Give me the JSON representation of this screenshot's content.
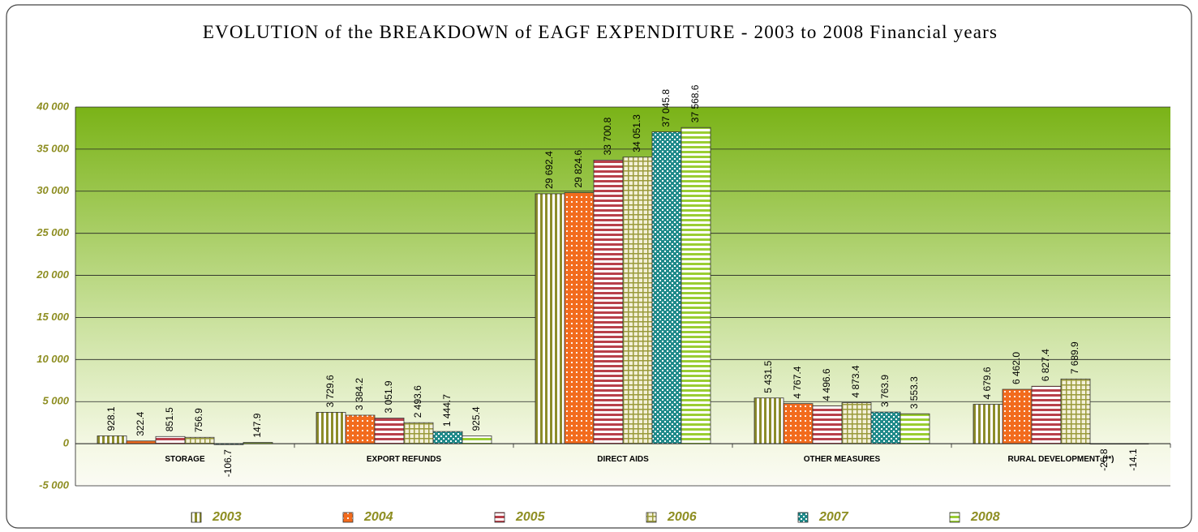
{
  "chart_data": {
    "type": "bar",
    "title": "EVOLUTION of the BREAKDOWN of EAGF EXPENDITURE - 2003 to 2008 Financial years",
    "categories": [
      "STORAGE",
      "EXPORT REFUNDS",
      "DIRECT AIDS",
      "OTHER MEASURES",
      "RURAL DEVELOPMENT (**)"
    ],
    "series": [
      {
        "name": "2003",
        "color": "#8c8c2a",
        "values": [
          928.1,
          3729.6,
          29692.4,
          5431.5,
          4679.6
        ],
        "value_labels": [
          "928.1",
          "3 729.6",
          "29 692.4",
          "5 431.5",
          "4 679.6"
        ]
      },
      {
        "name": "2004",
        "color": "#f26b1d",
        "values": [
          322.4,
          3384.2,
          29824.6,
          4767.4,
          6462.0
        ],
        "value_labels": [
          "322.4",
          "3 384.2",
          "29 824.6",
          "4 767.4",
          "6 462.0"
        ]
      },
      {
        "name": "2005",
        "color": "#b8404a",
        "values": [
          851.5,
          3051.9,
          33700.8,
          4496.6,
          6827.4
        ],
        "value_labels": [
          "851.5",
          "3 051.9",
          "33 700.8",
          "4 496.6",
          "6 827.4"
        ]
      },
      {
        "name": "2006",
        "color": "#9a9a3a",
        "values": [
          756.9,
          2493.6,
          34051.3,
          4873.4,
          7689.9
        ],
        "value_labels": [
          "756.9",
          "2 493.6",
          "34 051.3",
          "4 873.4",
          "7 689.9"
        ]
      },
      {
        "name": "2007",
        "color": "#1f8a8a",
        "values": [
          -106.7,
          1444.7,
          37045.8,
          3763.9,
          -26.8
        ],
        "value_labels": [
          "-106.7",
          "1 444.7",
          "37 045.8",
          "3 763.9",
          "-26.8"
        ]
      },
      {
        "name": "2008",
        "color": "#9acd32",
        "values": [
          147.9,
          925.4,
          37568.6,
          3553.3,
          -14.1
        ],
        "value_labels": [
          "147.9",
          "925.4",
          "37 568.6",
          "3 553.3",
          "-14.1"
        ]
      }
    ],
    "ylim": [
      -5000,
      40000
    ],
    "yticks": [
      {
        "value": -5000,
        "label": "-5 000"
      },
      0,
      {
        "value": 5000,
        "label": "5 000"
      },
      {
        "value": 10000,
        "label": "10 000"
      },
      {
        "value": 15000,
        "label": "15 000"
      },
      {
        "value": 20000,
        "label": "20 000"
      },
      {
        "value": 25000,
        "label": "25 000"
      },
      {
        "value": 30000,
        "label": "30 000"
      },
      {
        "value": 35000,
        "label": "35 000"
      },
      {
        "value": 40000,
        "label": "40 000"
      }
    ],
    "grid": true,
    "legend": "bottom"
  }
}
